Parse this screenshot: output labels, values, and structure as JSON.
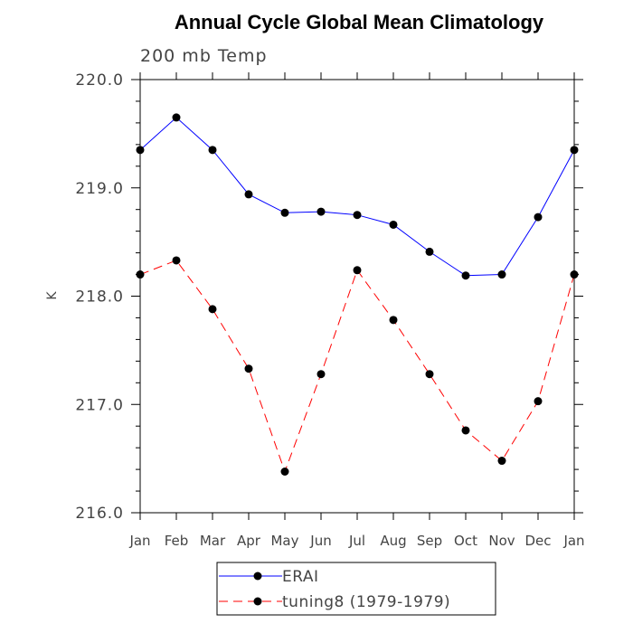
{
  "chart_data": {
    "type": "line",
    "title": "Annual Cycle Global Mean Climatology",
    "subtitle": "200 mb Temp",
    "xlabel": "",
    "ylabel": "K",
    "categories": [
      "Jan",
      "Feb",
      "Mar",
      "Apr",
      "May",
      "Jun",
      "Jul",
      "Aug",
      "Sep",
      "Oct",
      "Nov",
      "Dec",
      "Jan"
    ],
    "ylim": [
      216.0,
      220.0
    ],
    "yticks": [
      "216.0",
      "217.0",
      "218.0",
      "219.0",
      "220.0"
    ],
    "series": [
      {
        "name": "ERAI",
        "color": "#0000ff",
        "dash": "solid",
        "values": [
          219.35,
          219.65,
          219.35,
          218.94,
          218.77,
          218.78,
          218.75,
          218.66,
          218.41,
          218.19,
          218.2,
          218.73,
          219.35
        ]
      },
      {
        "name": "tuning8 (1979-1979)",
        "color": "#ff0000",
        "dash": "dashed",
        "values": [
          218.2,
          218.33,
          217.88,
          217.33,
          216.38,
          217.28,
          218.24,
          217.78,
          217.28,
          216.76,
          216.48,
          217.03,
          218.2
        ]
      }
    ],
    "legend_position": "bottom",
    "marker_color": "#000000"
  }
}
